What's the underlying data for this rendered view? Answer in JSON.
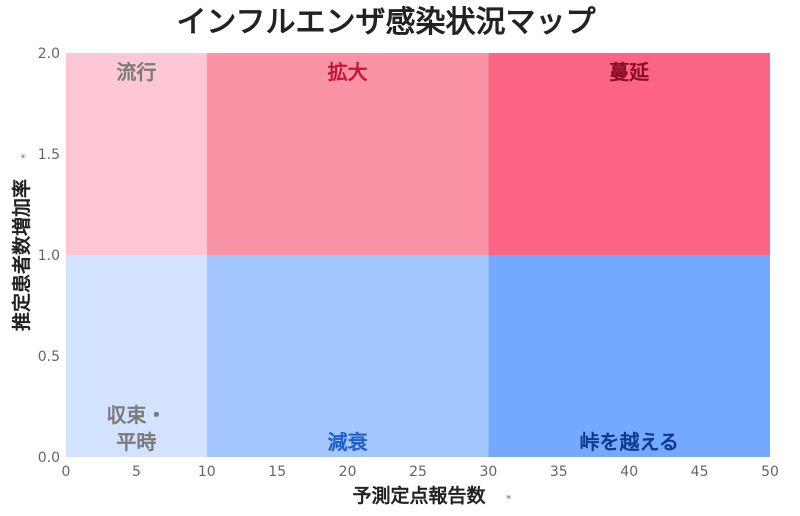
{
  "chart_data": {
    "type": "heatmap",
    "title": "インフルエンザ感染状況マップ",
    "xlabel": "予測定点報告数",
    "ylabel": "推定患者数増加率",
    "axis_mark": "⁎",
    "xlim": [
      0,
      50
    ],
    "ylim": [
      0,
      2.0
    ],
    "xticks": [
      0,
      5,
      10,
      15,
      20,
      25,
      30,
      35,
      40,
      45,
      50
    ],
    "yticks": [
      0.0,
      0.5,
      1.0,
      1.5,
      2.0
    ],
    "ytick_labels": [
      "0.0",
      "0.5",
      "1.0",
      "1.5",
      "2.0"
    ],
    "grid": false,
    "zones": [
      {
        "label": "流行",
        "x": [
          0,
          10
        ],
        "y": [
          1.0,
          2.0
        ],
        "fill": "#fdc8d3",
        "text_color": "#7a7a7a",
        "label_pos": "top"
      },
      {
        "label": "拡大",
        "x": [
          10,
          30
        ],
        "y": [
          1.0,
          2.0
        ],
        "fill": "#fb93a6",
        "text_color": "#c2173a",
        "label_pos": "top"
      },
      {
        "label": "蔓延",
        "x": [
          30,
          50
        ],
        "y": [
          1.0,
          2.0
        ],
        "fill": "#fb6483",
        "text_color": "#8a0c26",
        "label_pos": "top"
      },
      {
        "label": "収束・\n平時",
        "x": [
          0,
          10
        ],
        "y": [
          0.0,
          1.0
        ],
        "fill": "#d3e2fe",
        "text_color": "#7a7a7a",
        "label_pos": "bottom"
      },
      {
        "label": "減衰",
        "x": [
          10,
          30
        ],
        "y": [
          0.0,
          1.0
        ],
        "fill": "#a4c6fe",
        "text_color": "#1b5fd0",
        "label_pos": "bottom"
      },
      {
        "label": "峠を越える",
        "x": [
          30,
          50
        ],
        "y": [
          0.0,
          1.0
        ],
        "fill": "#74a9fe",
        "text_color": "#0d3a8c",
        "label_pos": "bottom"
      }
    ]
  }
}
